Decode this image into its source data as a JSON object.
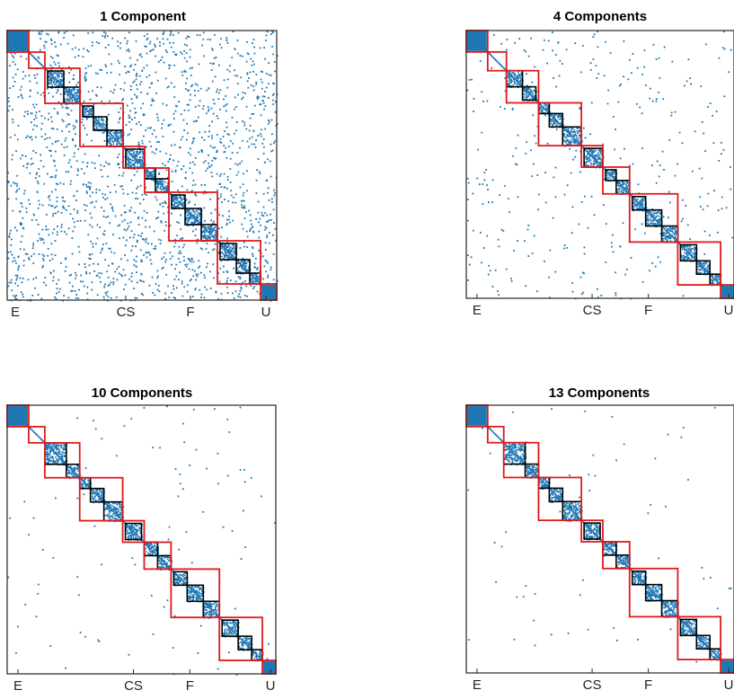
{
  "figure": {
    "marker_color": "#1f77b4",
    "outer_block_color": "#e0191b",
    "inner_block_color": "#000000",
    "frame_color": "#262626"
  },
  "chart_data": [
    {
      "type": "heatmap",
      "title": "1 Component",
      "xtick_labels": [
        "E",
        "CS",
        "F",
        "U"
      ],
      "density": 0.16,
      "ticks": [
        0.03,
        0.44,
        0.68,
        0.96
      ],
      "outer_blocks": [
        [
          0,
          0.08
        ],
        [
          0.08,
          0.14
        ],
        [
          0.14,
          0.27
        ],
        [
          0.27,
          0.43
        ],
        [
          0.43,
          0.51
        ],
        [
          0.51,
          0.6
        ],
        [
          0.6,
          0.78
        ],
        [
          0.78,
          0.94
        ],
        [
          0.94,
          1
        ]
      ],
      "inner_blocks": [
        [
          0.15,
          0.21
        ],
        [
          0.21,
          0.27
        ],
        [
          0.28,
          0.32
        ],
        [
          0.32,
          0.37
        ],
        [
          0.37,
          0.43
        ],
        [
          0.44,
          0.51
        ],
        [
          0.51,
          0.55
        ],
        [
          0.55,
          0.6
        ],
        [
          0.61,
          0.66
        ],
        [
          0.66,
          0.72
        ],
        [
          0.72,
          0.78
        ],
        [
          0.79,
          0.85
        ],
        [
          0.85,
          0.9
        ],
        [
          0.9,
          0.94
        ]
      ]
    },
    {
      "type": "heatmap",
      "title": "4 Components",
      "xtick_labels": [
        "E",
        "CS",
        "F",
        "U"
      ],
      "density": 0.03,
      "ticks": [
        0.04,
        0.47,
        0.68,
        0.98
      ],
      "outer_blocks": [
        [
          0,
          0.08
        ],
        [
          0.08,
          0.15
        ],
        [
          0.15,
          0.27
        ],
        [
          0.27,
          0.43
        ],
        [
          0.43,
          0.51
        ],
        [
          0.51,
          0.61
        ],
        [
          0.61,
          0.79
        ],
        [
          0.79,
          0.95
        ],
        [
          0.95,
          1
        ]
      ],
      "inner_blocks": [
        [
          0.15,
          0.21
        ],
        [
          0.21,
          0.26
        ],
        [
          0.27,
          0.31
        ],
        [
          0.31,
          0.36
        ],
        [
          0.36,
          0.43
        ],
        [
          0.44,
          0.51
        ],
        [
          0.52,
          0.56
        ],
        [
          0.56,
          0.61
        ],
        [
          0.62,
          0.67
        ],
        [
          0.67,
          0.73
        ],
        [
          0.73,
          0.79
        ],
        [
          0.8,
          0.86
        ],
        [
          0.86,
          0.91
        ],
        [
          0.91,
          0.95
        ]
      ]
    },
    {
      "type": "heatmap",
      "title": "10 Components",
      "xtick_labels": [
        "E",
        "CS",
        "F",
        "U"
      ],
      "density": 0.008,
      "ticks": [
        0.04,
        0.47,
        0.68,
        0.98
      ],
      "outer_blocks": [
        [
          0,
          0.08
        ],
        [
          0.08,
          0.14
        ],
        [
          0.14,
          0.27
        ],
        [
          0.27,
          0.43
        ],
        [
          0.43,
          0.51
        ],
        [
          0.51,
          0.61
        ],
        [
          0.61,
          0.79
        ],
        [
          0.79,
          0.95
        ],
        [
          0.95,
          1
        ]
      ],
      "inner_blocks": [
        [
          0.14,
          0.22
        ],
        [
          0.22,
          0.27
        ],
        [
          0.27,
          0.31
        ],
        [
          0.31,
          0.36
        ],
        [
          0.36,
          0.43
        ],
        [
          0.44,
          0.5
        ],
        [
          0.51,
          0.56
        ],
        [
          0.56,
          0.61
        ],
        [
          0.62,
          0.67
        ],
        [
          0.67,
          0.73
        ],
        [
          0.73,
          0.79
        ],
        [
          0.8,
          0.86
        ],
        [
          0.86,
          0.91
        ],
        [
          0.91,
          0.95
        ]
      ]
    },
    {
      "type": "heatmap",
      "title": "13 Components",
      "xtick_labels": [
        "E",
        "CS",
        "F",
        "U"
      ],
      "density": 0.005,
      "ticks": [
        0.04,
        0.47,
        0.68,
        0.98
      ],
      "outer_blocks": [
        [
          0,
          0.08
        ],
        [
          0.08,
          0.14
        ],
        [
          0.14,
          0.27
        ],
        [
          0.27,
          0.43
        ],
        [
          0.43,
          0.51
        ],
        [
          0.51,
          0.61
        ],
        [
          0.61,
          0.79
        ],
        [
          0.79,
          0.95
        ],
        [
          0.95,
          1
        ]
      ],
      "inner_blocks": [
        [
          0.14,
          0.22
        ],
        [
          0.22,
          0.27
        ],
        [
          0.27,
          0.31
        ],
        [
          0.31,
          0.36
        ],
        [
          0.36,
          0.43
        ],
        [
          0.44,
          0.5
        ],
        [
          0.51,
          0.56
        ],
        [
          0.56,
          0.61
        ],
        [
          0.62,
          0.67
        ],
        [
          0.67,
          0.73
        ],
        [
          0.73,
          0.79
        ],
        [
          0.8,
          0.86
        ],
        [
          0.86,
          0.91
        ],
        [
          0.91,
          0.95
        ]
      ]
    }
  ]
}
